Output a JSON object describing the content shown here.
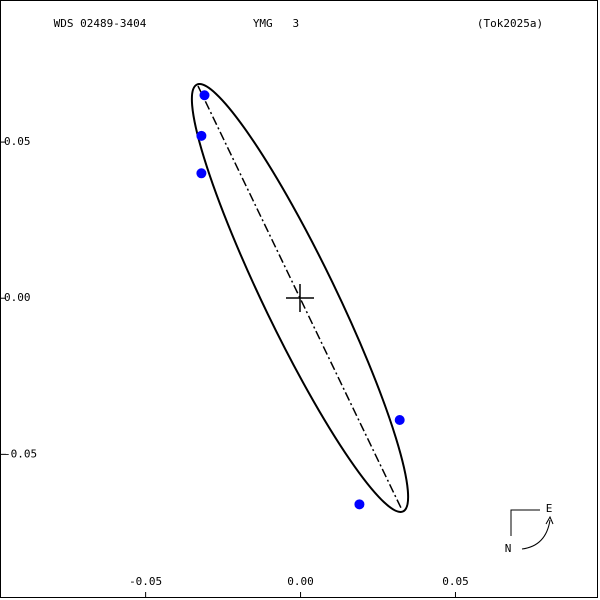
{
  "chart_data": {
    "type": "scatter",
    "title": "WDS 02489-3404",
    "subtitle": "YMG   3",
    "reference": "(Tok2025a)",
    "x": [
      -0.031,
      -0.032,
      -0.032,
      0.032,
      0.019
    ],
    "values": [
      0.065,
      0.052,
      0.04,
      -0.039,
      -0.066
    ],
    "color": "#0000ff",
    "xlim": [
      -0.097,
      0.096
    ],
    "ylim": [
      -0.096,
      0.0955
    ],
    "xticks": [
      -0.05,
      {
        "value": 0,
        "label": "0.00"
      },
      0.05
    ],
    "yticks": [
      -0.05,
      {
        "value": 0,
        "label": "0.00"
      },
      0.05
    ],
    "compass": {
      "east": "E",
      "north": "N"
    }
  }
}
